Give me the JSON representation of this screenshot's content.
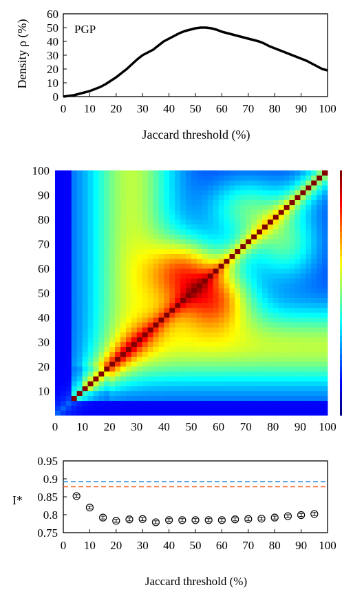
{
  "chart_data": [
    {
      "type": "line",
      "annotation": "PGP",
      "xlabel": "Jaccard threshold (%)",
      "ylabel": "Density  ρ (%)",
      "xlim": [
        0,
        100
      ],
      "ylim": [
        0,
        60
      ],
      "xticks": [
        0,
        10,
        20,
        30,
        40,
        50,
        60,
        70,
        80,
        90,
        100
      ],
      "yticks": [
        0,
        10,
        20,
        30,
        40,
        50,
        60
      ],
      "grid": false,
      "x": [
        0,
        2,
        4,
        6,
        8,
        10,
        12,
        14,
        16,
        18,
        20,
        22,
        24,
        26,
        28,
        30,
        32,
        34,
        36,
        38,
        40,
        42,
        44,
        46,
        48,
        50,
        52,
        54,
        56,
        58,
        60,
        62,
        64,
        66,
        68,
        70,
        72,
        74,
        76,
        78,
        80,
        82,
        84,
        86,
        88,
        90,
        92,
        94,
        96,
        98,
        100
      ],
      "y": [
        0,
        0.5,
        1,
        2,
        3,
        4,
        5.5,
        7,
        9,
        11.5,
        14,
        17,
        20,
        23.5,
        27,
        30,
        32,
        34,
        37,
        40,
        42,
        44,
        46,
        47.5,
        48.5,
        49.5,
        50,
        50,
        49.5,
        48.5,
        47,
        46,
        45,
        44,
        43,
        42,
        41,
        40,
        38.5,
        36.5,
        35,
        33.5,
        32,
        30.5,
        29,
        27.5,
        26,
        24,
        22,
        20,
        19
      ]
    },
    {
      "type": "heatmap",
      "xlim": [
        0,
        100
      ],
      "ylim": [
        0,
        100
      ],
      "xticks": [
        0,
        10,
        20,
        30,
        40,
        50,
        60,
        70,
        80,
        90,
        100
      ],
      "yticks": [
        10,
        20,
        30,
        40,
        50,
        60,
        70,
        80,
        90,
        100
      ],
      "colormap": "jet",
      "symmetric": true
    },
    {
      "type": "scatter",
      "xlabel": "Jaccard threshold (%)",
      "ylabel": "I*",
      "xlim": [
        0,
        100
      ],
      "ylim": [
        0.75,
        0.95
      ],
      "xticks": [
        0,
        10,
        20,
        30,
        40,
        50,
        60,
        70,
        80,
        90,
        100
      ],
      "yticks": [
        "0.75",
        "0.8",
        "0.85",
        "0.9",
        "0.95"
      ],
      "error_bars": true,
      "x": [
        5,
        10,
        15,
        20,
        25,
        30,
        35,
        40,
        45,
        50,
        55,
        60,
        65,
        70,
        75,
        80,
        85,
        90,
        95
      ],
      "y": [
        0.852,
        0.82,
        0.792,
        0.783,
        0.787,
        0.788,
        0.779,
        0.785,
        0.785,
        0.785,
        0.785,
        0.785,
        0.787,
        0.788,
        0.789,
        0.792,
        0.796,
        0.799,
        0.802
      ],
      "err": [
        0.004,
        0.004,
        0.004,
        0.004,
        0.004,
        0.004,
        0.004,
        0.004,
        0.004,
        0.004,
        0.004,
        0.004,
        0.004,
        0.004,
        0.004,
        0.004,
        0.004,
        0.004,
        0.004
      ],
      "reference_lines": [
        {
          "y": 0.892,
          "color": "#2b8fd6",
          "style": "dashed"
        },
        {
          "y": 0.878,
          "color": "#f26522",
          "style": "dashed"
        }
      ]
    }
  ]
}
